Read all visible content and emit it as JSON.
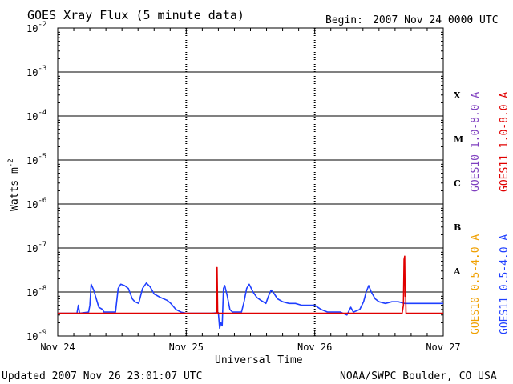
{
  "header": {
    "title": "GOES Xray Flux (5 minute data)",
    "begin_label": "Begin:",
    "begin_value": "2007 Nov 24 0000 UTC"
  },
  "footer": {
    "updated": "Updated 2007 Nov 26 23:01:07 UTC",
    "source": "NOAA/SWPC Boulder, CO USA"
  },
  "colors": {
    "goes10_long": "#7f3fbf",
    "goes11_long": "#e00000",
    "goes10_short": "#f0a000",
    "goes11_short": "#1f3fff"
  },
  "chart_data": {
    "type": "line",
    "title": "GOES Xray Flux (5 minute data)",
    "xlabel": "Universal Time",
    "ylabel": "Watts m",
    "ylabel_superscript": "-2",
    "y_scale": "log",
    "ylim": [
      1e-09,
      0.01
    ],
    "x_unit": "days since 2007 Nov 24 0000 UTC",
    "xlim": [
      0,
      3
    ],
    "x_ticks": [
      {
        "value": 0,
        "label": "Nov 24"
      },
      {
        "value": 1,
        "label": "Nov 25"
      },
      {
        "value": 2,
        "label": "Nov 26"
      },
      {
        "value": 3,
        "label": "Nov 27"
      }
    ],
    "y_ticks": [
      {
        "value": 0.01,
        "base": "10",
        "exp": "-2"
      },
      {
        "value": 0.001,
        "base": "10",
        "exp": "-3"
      },
      {
        "value": 0.0001,
        "base": "10",
        "exp": "-4"
      },
      {
        "value": 1e-05,
        "base": "10",
        "exp": "-5"
      },
      {
        "value": 1e-06,
        "base": "10",
        "exp": "-6"
      },
      {
        "value": 1e-07,
        "base": "10",
        "exp": "-7"
      },
      {
        "value": 1e-08,
        "base": "10",
        "exp": "-8"
      },
      {
        "value": 1e-09,
        "base": "10",
        "exp": "-9"
      }
    ],
    "flare_classes": [
      {
        "label": "X",
        "value": 0.0003
      },
      {
        "label": "M",
        "value": 3e-05
      },
      {
        "label": "C",
        "value": 3e-06
      },
      {
        "label": "B",
        "value": 3e-07
      },
      {
        "label": "A",
        "value": 3e-08
      }
    ],
    "grid": "horizontal lines at each decade from 1e-8 to 1e-3; dotted vertical day separators",
    "legend_position": "right, vertical",
    "legend": [
      {
        "name": "GOES10 1.0-8.0 A",
        "color": "#7f3fbf"
      },
      {
        "name": "GOES11 1.0-8.0 A",
        "color": "#e00000"
      },
      {
        "name": "GOES10 0.5-4.0 A",
        "color": "#f0a000"
      },
      {
        "name": "GOES11 0.5-4.0 A",
        "color": "#1f3fff"
      }
    ],
    "series": [
      {
        "name": "GOES11 1.0-8.0 A",
        "color": "#e00000",
        "points": [
          [
            0.0,
            3.3e-09
          ],
          [
            0.25,
            3.3e-09
          ],
          [
            0.5,
            3.3e-09
          ],
          [
            0.75,
            3.3e-09
          ],
          [
            1.0,
            3.3e-09
          ],
          [
            1.2,
            3.3e-09
          ],
          [
            1.235,
            3.3e-09
          ],
          [
            1.24,
            3.6e-08
          ],
          [
            1.245,
            3.3e-09
          ],
          [
            1.5,
            3.3e-09
          ],
          [
            1.75,
            3.3e-09
          ],
          [
            2.0,
            3.3e-09
          ],
          [
            2.25,
            3.3e-09
          ],
          [
            2.5,
            3.3e-09
          ],
          [
            2.68,
            3.3e-09
          ],
          [
            2.69,
            5e-09
          ],
          [
            2.695,
            5.5e-08
          ],
          [
            2.7,
            6.5e-08
          ],
          [
            2.703,
            8e-09
          ],
          [
            2.706,
            1.5e-08
          ],
          [
            2.71,
            3.3e-09
          ],
          [
            3.0,
            3.3e-09
          ]
        ]
      },
      {
        "name": "GOES11 0.5-4.0 A",
        "color": "#1f3fff",
        "points": [
          [
            0.0,
            3.3e-09
          ],
          [
            0.15,
            3.3e-09
          ],
          [
            0.16,
            5e-09
          ],
          [
            0.17,
            3.3e-09
          ],
          [
            0.24,
            3.5e-09
          ],
          [
            0.25,
            5e-09
          ],
          [
            0.26,
            1.5e-08
          ],
          [
            0.28,
            1.1e-08
          ],
          [
            0.3,
            7e-09
          ],
          [
            0.32,
            4.5e-09
          ],
          [
            0.35,
            4e-09
          ],
          [
            0.36,
            3.5e-09
          ],
          [
            0.45,
            3.5e-09
          ],
          [
            0.47,
            1.2e-08
          ],
          [
            0.49,
            1.5e-08
          ],
          [
            0.52,
            1.4e-08
          ],
          [
            0.55,
            1.2e-08
          ],
          [
            0.58,
            7e-09
          ],
          [
            0.6,
            6e-09
          ],
          [
            0.63,
            5.5e-09
          ],
          [
            0.66,
            1.2e-08
          ],
          [
            0.69,
            1.6e-08
          ],
          [
            0.72,
            1.3e-08
          ],
          [
            0.75,
            9e-09
          ],
          [
            0.8,
            7.5e-09
          ],
          [
            0.85,
            6.5e-09
          ],
          [
            0.88,
            5.5e-09
          ],
          [
            0.92,
            4e-09
          ],
          [
            0.96,
            3.5e-09
          ],
          [
            1.0,
            3.3e-09
          ],
          [
            1.2,
            3.3e-09
          ],
          [
            1.25,
            3.4e-09
          ],
          [
            1.26,
            1.5e-09
          ],
          [
            1.27,
            2e-09
          ],
          [
            1.28,
            1.7e-09
          ],
          [
            1.29,
            1.2e-08
          ],
          [
            1.3,
            1.4e-08
          ],
          [
            1.32,
            8e-09
          ],
          [
            1.34,
            4e-09
          ],
          [
            1.36,
            3.5e-09
          ],
          [
            1.43,
            3.5e-09
          ],
          [
            1.45,
            6e-09
          ],
          [
            1.47,
            1.2e-08
          ],
          [
            1.49,
            1.5e-08
          ],
          [
            1.52,
            1e-08
          ],
          [
            1.55,
            7.5e-09
          ],
          [
            1.58,
            6.5e-09
          ],
          [
            1.62,
            5.5e-09
          ],
          [
            1.64,
            8e-09
          ],
          [
            1.66,
            1.1e-08
          ],
          [
            1.68,
            9.5e-09
          ],
          [
            1.71,
            7e-09
          ],
          [
            1.75,
            6e-09
          ],
          [
            1.8,
            5.5e-09
          ],
          [
            1.85,
            5.5e-09
          ],
          [
            1.9,
            5e-09
          ],
          [
            1.95,
            5e-09
          ],
          [
            2.0,
            5e-09
          ],
          [
            2.05,
            4e-09
          ],
          [
            2.1,
            3.5e-09
          ],
          [
            2.2,
            3.5e-09
          ],
          [
            2.25,
            3e-09
          ],
          [
            2.28,
            4.5e-09
          ],
          [
            2.3,
            3.5e-09
          ],
          [
            2.35,
            4e-09
          ],
          [
            2.38,
            6e-09
          ],
          [
            2.4,
            1e-08
          ],
          [
            2.42,
            1.4e-08
          ],
          [
            2.44,
            1e-08
          ],
          [
            2.47,
            7e-09
          ],
          [
            2.5,
            6e-09
          ],
          [
            2.55,
            5.5e-09
          ],
          [
            2.6,
            6e-09
          ],
          [
            2.65,
            6e-09
          ],
          [
            2.7,
            5.5e-09
          ],
          [
            2.75,
            5.5e-09
          ],
          [
            2.8,
            5.5e-09
          ],
          [
            2.85,
            5.5e-09
          ],
          [
            2.9,
            5.5e-09
          ],
          [
            2.95,
            5.5e-09
          ],
          [
            3.0,
            5.5e-09
          ]
        ]
      }
    ]
  }
}
